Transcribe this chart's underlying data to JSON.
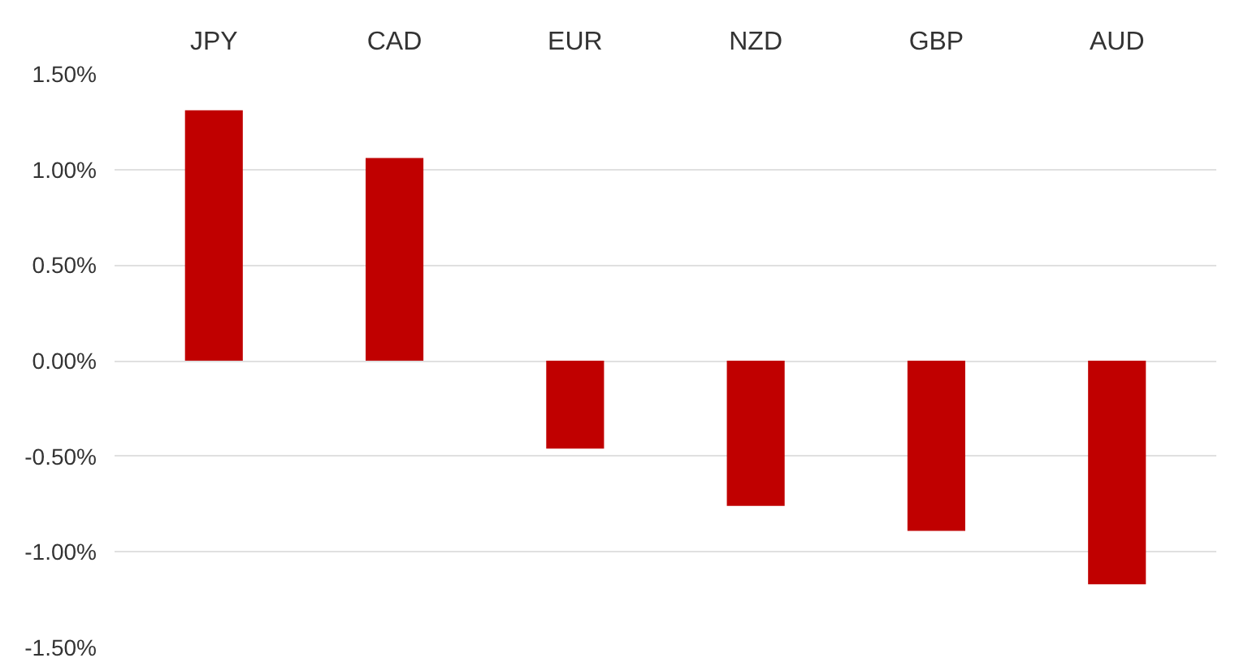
{
  "chart_data": {
    "type": "bar",
    "categories": [
      "JPY",
      "CAD",
      "EUR",
      "NZD",
      "GBP",
      "AUD"
    ],
    "values": [
      1.31,
      1.06,
      -0.46,
      -0.76,
      -0.89,
      -1.17
    ],
    "color": "#c00000",
    "ylim": [
      -1.5,
      1.5
    ],
    "yticks": [
      {
        "value": -1.5,
        "label": "-1.50%"
      },
      {
        "value": -1.0,
        "label": "-1.00%"
      },
      {
        "value": -0.5,
        "label": "-0.50%"
      },
      {
        "value": 0,
        "label": "0.00%"
      },
      {
        "value": 0.5,
        "label": "0.50%"
      },
      {
        "value": 1.0,
        "label": "1.00%"
      },
      {
        "value": 1.5,
        "label": "1.50%"
      }
    ],
    "grid": "y"
  }
}
